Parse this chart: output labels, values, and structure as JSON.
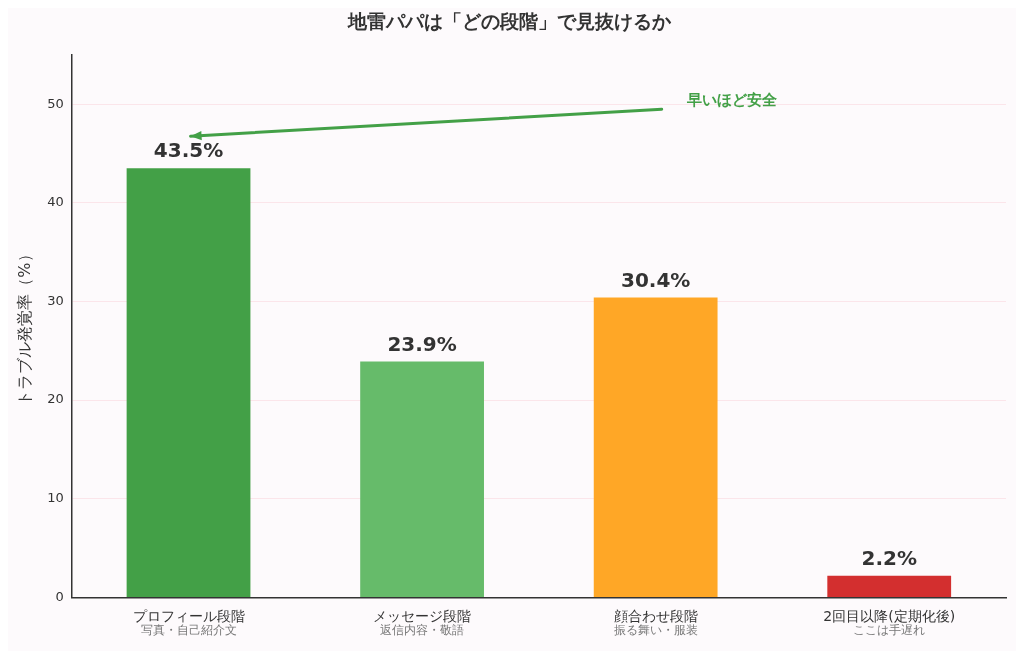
{
  "chart_data": {
    "type": "bar",
    "title": "地雷パパは「どの段階」で見抜けるか",
    "ylabel": "トラブル発覚率（%）",
    "categories": [
      "プロフィール段階",
      "メッセージ段階",
      "顔合わせ段階",
      "2回目以降(定期化後)"
    ],
    "values": [
      43.5,
      23.9,
      30.4,
      2.2
    ],
    "colors": [
      "#43a047",
      "#66bb6a",
      "#ffa726",
      "#d32f2f"
    ],
    "value_labels": [
      "43.5%",
      "23.9%",
      "30.4%",
      "2.2%"
    ],
    "ylim": [
      0,
      55
    ],
    "yticks": [
      0,
      10,
      20,
      30,
      40,
      50
    ],
    "grid": "y",
    "legend": false,
    "annotations": [
      "早いほど安全",
      "写真・自己紹介文",
      "返信内容・敬語",
      "振る舞い・服装",
      "ここは手遅れ"
    ]
  }
}
